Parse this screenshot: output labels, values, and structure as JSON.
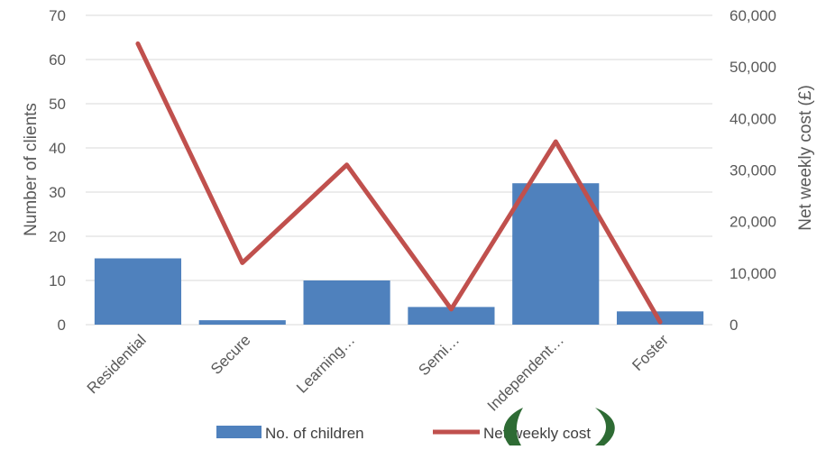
{
  "chart_data": {
    "type": "bar",
    "categories": [
      "Residential",
      "Secure",
      "Learning…",
      "Semi…",
      "Independent…",
      "Foster"
    ],
    "series": [
      {
        "name": "No. of children",
        "type": "bar",
        "axis": "left",
        "color": "#4f81bd",
        "values": [
          15,
          1,
          10,
          4,
          32,
          3
        ]
      },
      {
        "name": "Net weekly cost",
        "type": "line",
        "axis": "right",
        "color": "#c0504d",
        "values": [
          54500,
          12000,
          31000,
          3000,
          35500,
          500
        ]
      }
    ],
    "ylabel": "Number of clients",
    "y2label": "Net weekly cost (£)",
    "ylim": [
      0,
      70
    ],
    "y2lim": [
      0,
      60000
    ],
    "yticks": [
      "0",
      "10",
      "20",
      "30",
      "40",
      "50",
      "60",
      "70"
    ],
    "y2ticks": [
      "0",
      "10,000",
      "20,000",
      "30,000",
      "40,000",
      "50,000",
      "60,000"
    ],
    "grid": true,
    "legend_position": "bottom"
  }
}
